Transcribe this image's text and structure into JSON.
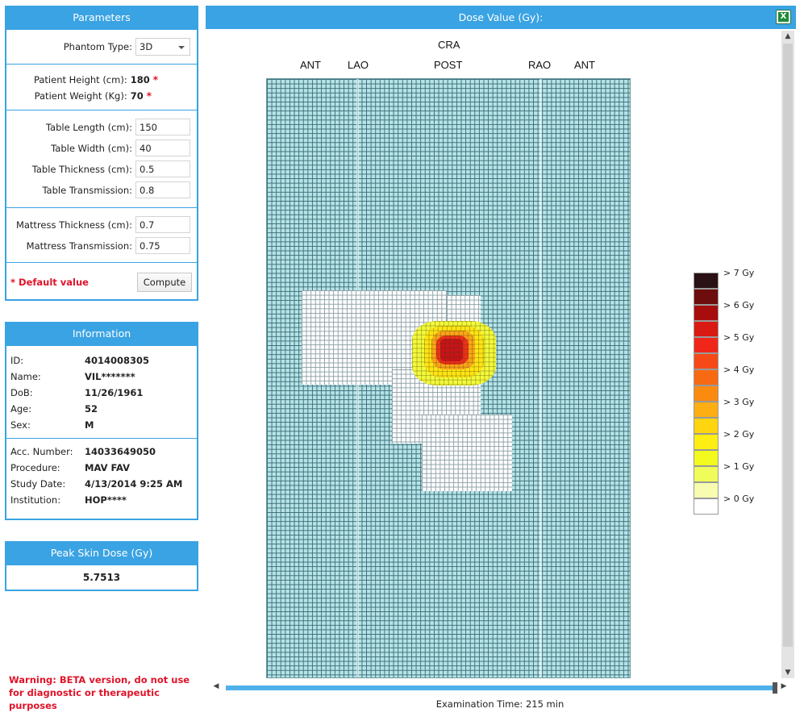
{
  "parameters": {
    "title": "Parameters",
    "phantom_type_label": "Phantom Type:",
    "phantom_type_value": "3D",
    "patient_height_label": "Patient Height (cm):",
    "patient_height_value": "180",
    "patient_weight_label": "Patient Weight (Kg):",
    "patient_weight_value": "70",
    "default_marker": "*",
    "table_length_label": "Table Length (cm):",
    "table_length_value": "150",
    "table_width_label": "Table Width (cm):",
    "table_width_value": "40",
    "table_thickness_label": "Table Thickness (cm):",
    "table_thickness_value": "0.5",
    "table_transmission_label": "Table Transmission:",
    "table_transmission_value": "0.8",
    "mattress_thickness_label": "Mattress Thickness (cm):",
    "mattress_thickness_value": "0.7",
    "mattress_transmission_label": "Mattress Transmission:",
    "mattress_transmission_value": "0.75",
    "default_note": "* Default value",
    "compute_label": "Compute"
  },
  "information": {
    "title": "Information",
    "rows": [
      {
        "key": "ID:",
        "value": "4014008305"
      },
      {
        "key": "Name:",
        "value": "VIL*******"
      },
      {
        "key": "DoB:",
        "value": "11/26/1961"
      },
      {
        "key": "Age:",
        "value": "52"
      },
      {
        "key": "Sex:",
        "value": "M"
      }
    ],
    "rows2": [
      {
        "key": "Acc. Number:",
        "value": "14033649050"
      },
      {
        "key": "Procedure:",
        "value": "MAV FAV"
      },
      {
        "key": "Study Date:",
        "value": "4/13/2014 9:25 AM"
      },
      {
        "key": "Institution:",
        "value": "HOP****"
      }
    ]
  },
  "peak_skin_dose": {
    "title": "Peak Skin Dose (Gy)",
    "value": "5.7513"
  },
  "warning": "Warning: BETA version, do not use for diagnostic or therapeutic purposes",
  "dose_map": {
    "title": "Dose Value (Gy):",
    "top_label": "CRA",
    "view_labels": [
      "ANT",
      "LAO",
      "POST",
      "RAO",
      "ANT"
    ],
    "legend": [
      {
        "label": "> 7 Gy",
        "color": "#2a1114"
      },
      {
        "label": "",
        "color": "#6e0d0d"
      },
      {
        "label": "> 6 Gy",
        "color": "#a80d0d"
      },
      {
        "label": "",
        "color": "#d91a12"
      },
      {
        "label": "> 5 Gy",
        "color": "#f0261a"
      },
      {
        "label": "",
        "color": "#f54a17"
      },
      {
        "label": "> 4 Gy",
        "color": "#f76a12"
      },
      {
        "label": "",
        "color": "#fa8a10"
      },
      {
        "label": "> 3 Gy",
        "color": "#fcae12"
      },
      {
        "label": "",
        "color": "#ffd50f"
      },
      {
        "label": "> 2 Gy",
        "color": "#ffee14"
      },
      {
        "label": "",
        "color": "#f2fa1e"
      },
      {
        "label": "> 1 Gy",
        "color": "#f0fc5a"
      },
      {
        "label": "",
        "color": "#f7fcb0"
      },
      {
        "label": "> 0 Gy",
        "color": "#ffffff"
      }
    ]
  },
  "exam_time": "Examination Time: 215 min",
  "icons": {
    "export": "excel-export-icon"
  }
}
